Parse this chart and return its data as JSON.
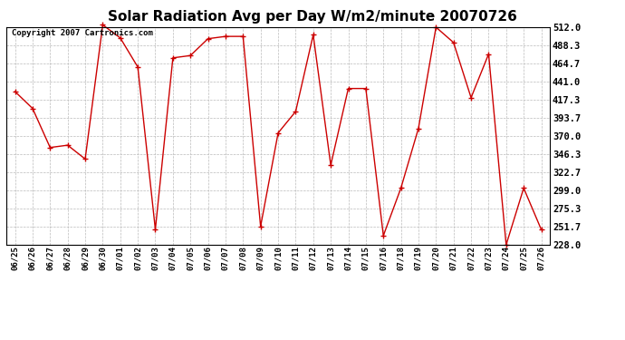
{
  "title": "Solar Radiation Avg per Day W/m2/minute 20070726",
  "copyright": "Copyright 2007 Cartronics.com",
  "labels": [
    "06/25",
    "06/26",
    "06/27",
    "06/28",
    "06/29",
    "06/30",
    "07/01",
    "07/02",
    "07/03",
    "07/04",
    "07/05",
    "07/06",
    "07/07",
    "07/08",
    "07/09",
    "07/10",
    "07/11",
    "07/12",
    "07/13",
    "07/14",
    "07/15",
    "07/16",
    "07/18",
    "07/19",
    "07/20",
    "07/21",
    "07/22",
    "07/23",
    "07/24",
    "07/25",
    "07/26"
  ],
  "values": [
    428,
    406,
    355,
    358,
    340,
    515,
    498,
    460,
    248,
    472,
    475,
    497,
    500,
    500,
    252,
    374,
    402,
    502,
    332,
    432,
    432,
    240,
    302,
    380,
    512,
    492,
    420,
    477,
    228,
    302,
    248
  ],
  "line_color": "#cc0000",
  "marker": "+",
  "marker_size": 4,
  "marker_linewidth": 1.0,
  "line_width": 1.0,
  "bg_color": "#ffffff",
  "grid_color": "#bbbbbb",
  "ylim": [
    228.0,
    512.0
  ],
  "yticks": [
    228.0,
    251.7,
    275.3,
    299.0,
    322.7,
    346.3,
    370.0,
    393.7,
    417.3,
    441.0,
    464.7,
    488.3,
    512.0
  ],
  "title_fontsize": 11,
  "copyright_fontsize": 6.5,
  "tick_fontsize": 6.5,
  "ytick_fontsize": 7.5
}
